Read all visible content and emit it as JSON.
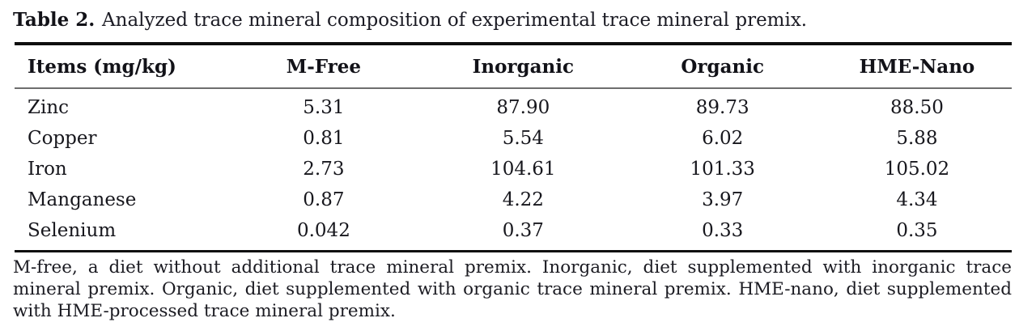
{
  "caption": {
    "label": "Table 2.",
    "text": "Analyzed trace mineral composition of experimental trace mineral premix."
  },
  "table": {
    "columns": [
      "Items (mg/kg)",
      "M-Free",
      "Inorganic",
      "Organic",
      "HME-Nano"
    ],
    "rows": [
      {
        "item": "Zinc",
        "values": [
          "5.31",
          "87.90",
          "89.73",
          "88.50"
        ]
      },
      {
        "item": "Copper",
        "values": [
          "0.81",
          "5.54",
          "6.02",
          "5.88"
        ]
      },
      {
        "item": "Iron",
        "values": [
          "2.73",
          "104.61",
          "101.33",
          "105.02"
        ]
      },
      {
        "item": "Manganese",
        "values": [
          "0.87",
          "4.22",
          "3.97",
          "4.34"
        ]
      },
      {
        "item": "Selenium",
        "values": [
          "0.042",
          "0.37",
          "0.33",
          "0.35"
        ]
      }
    ]
  },
  "footnote": "M-free, a diet without additional trace mineral premix. Inorganic, diet supplemented with inorganic trace mineral premix. Organic, diet supplemented with organic trace mineral premix. HME-nano, diet supplemented with HME-processed trace mineral premix.",
  "colors": {
    "text": "#17171d",
    "rule_heavy": "#0e0e0e",
    "rule_light": "#6e6e6e",
    "background": "#ffffff"
  }
}
